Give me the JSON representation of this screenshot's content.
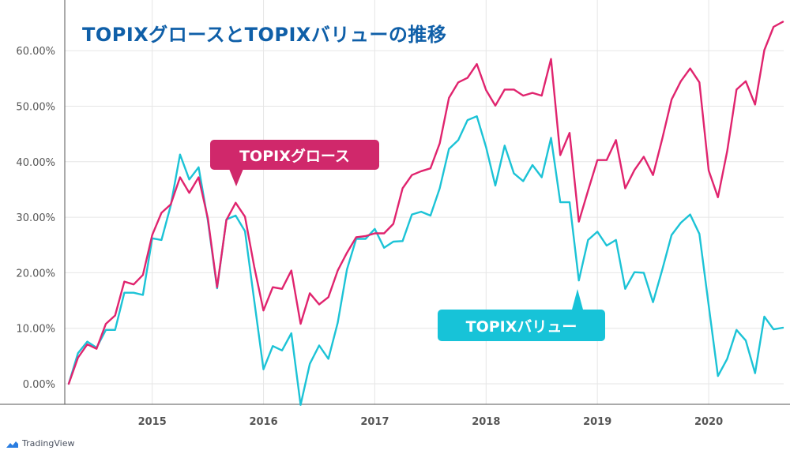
{
  "title": "TOPIXグロースとTOPIXバリューの推移",
  "callouts": {
    "growth": "TOPIXグロース",
    "value": "TOPIXバリュー"
  },
  "brand": {
    "name": "TradingView",
    "icon": "tradingview-cloud-icon"
  },
  "colors": {
    "growth": "#e0246e",
    "value": "#1cc3d6",
    "title": "#0f5fa8",
    "grid": "#e6e6e6"
  },
  "chart_data": {
    "type": "line",
    "ylabel": "",
    "xlabel": "",
    "y_ticks": [
      "0.00%",
      "10.00%",
      "20.00%",
      "30.00%",
      "40.00%",
      "50.00%",
      "60.00%"
    ],
    "x_ticks": [
      "2015",
      "2016",
      "2017",
      "2018",
      "2019",
      "2020"
    ],
    "ylim": [
      -4,
      68
    ],
    "grid": true,
    "series": [
      {
        "name": "TOPIXグロース",
        "color": "#e0246e",
        "points": [
          [
            "2014-04",
            0.0
          ],
          [
            "2014-05",
            4.7
          ],
          [
            "2014-06",
            7.1
          ],
          [
            "2014-07",
            6.3
          ],
          [
            "2014-08",
            10.8
          ],
          [
            "2014-09",
            12.3
          ],
          [
            "2014-10",
            18.4
          ],
          [
            "2014-11",
            17.9
          ],
          [
            "2014-12",
            19.6
          ],
          [
            "2015-01",
            26.8
          ],
          [
            "2015-02",
            30.8
          ],
          [
            "2015-03",
            32.3
          ],
          [
            "2015-04",
            37.2
          ],
          [
            "2015-05",
            34.4
          ],
          [
            "2015-06",
            37.2
          ],
          [
            "2015-07",
            29.8
          ],
          [
            "2015-08",
            17.4
          ],
          [
            "2015-09",
            29.5
          ],
          [
            "2015-10",
            32.6
          ],
          [
            "2015-11",
            30.1
          ],
          [
            "2015-12",
            21.1
          ],
          [
            "2016-01",
            13.2
          ],
          [
            "2016-02",
            17.4
          ],
          [
            "2016-03",
            17.1
          ],
          [
            "2016-04",
            20.4
          ],
          [
            "2016-05",
            10.8
          ],
          [
            "2016-06",
            16.3
          ],
          [
            "2016-07",
            14.3
          ],
          [
            "2016-08",
            15.6
          ],
          [
            "2016-09",
            20.4
          ],
          [
            "2016-10",
            23.6
          ],
          [
            "2016-11",
            26.4
          ],
          [
            "2016-12",
            26.6
          ],
          [
            "2017-01",
            27.1
          ],
          [
            "2017-02",
            27.1
          ],
          [
            "2017-03",
            28.8
          ],
          [
            "2017-04",
            35.2
          ],
          [
            "2017-05",
            37.6
          ],
          [
            "2017-06",
            38.3
          ],
          [
            "2017-07",
            38.8
          ],
          [
            "2017-08",
            43.3
          ],
          [
            "2017-09",
            51.5
          ],
          [
            "2017-10",
            54.3
          ],
          [
            "2017-11",
            55.1
          ],
          [
            "2017-12",
            57.6
          ],
          [
            "2018-01",
            52.9
          ],
          [
            "2018-02",
            50.1
          ],
          [
            "2018-03",
            53.0
          ],
          [
            "2018-04",
            53.0
          ],
          [
            "2018-05",
            51.9
          ],
          [
            "2018-06",
            52.4
          ],
          [
            "2018-07",
            51.9
          ],
          [
            "2018-08",
            58.5
          ],
          [
            "2018-09",
            41.2
          ],
          [
            "2018-10",
            45.2
          ],
          [
            "2018-11",
            29.2
          ],
          [
            "2018-12",
            34.8
          ],
          [
            "2019-01",
            40.3
          ],
          [
            "2019-02",
            40.3
          ],
          [
            "2019-03",
            43.9
          ],
          [
            "2019-04",
            35.2
          ],
          [
            "2019-05",
            38.5
          ],
          [
            "2019-06",
            40.9
          ],
          [
            "2019-07",
            37.6
          ],
          [
            "2019-08",
            44.2
          ],
          [
            "2019-09",
            51.2
          ],
          [
            "2019-10",
            54.5
          ],
          [
            "2019-11",
            56.8
          ],
          [
            "2019-12",
            54.3
          ],
          [
            "2020-01",
            38.4
          ],
          [
            "2020-02",
            33.6
          ],
          [
            "2020-03",
            41.9
          ],
          [
            "2020-04",
            53.0
          ],
          [
            "2020-05",
            54.5
          ],
          [
            "2020-06",
            50.3
          ],
          [
            "2020-07",
            60.1
          ],
          [
            "2020-08",
            64.3
          ],
          [
            "2020-09",
            65.2
          ]
        ]
      },
      {
        "name": "TOPIXバリュー",
        "color": "#1cc3d6",
        "points": [
          [
            "2014-04",
            0.0
          ],
          [
            "2014-05",
            5.5
          ],
          [
            "2014-06",
            7.6
          ],
          [
            "2014-07",
            6.5
          ],
          [
            "2014-08",
            9.7
          ],
          [
            "2014-09",
            9.7
          ],
          [
            "2014-10",
            16.4
          ],
          [
            "2014-11",
            16.4
          ],
          [
            "2014-12",
            16.0
          ],
          [
            "2015-01",
            26.2
          ],
          [
            "2015-02",
            25.9
          ],
          [
            "2015-03",
            32.1
          ],
          [
            "2015-04",
            41.3
          ],
          [
            "2015-05",
            36.8
          ],
          [
            "2015-06",
            39.0
          ],
          [
            "2015-07",
            29.4
          ],
          [
            "2015-08",
            17.2
          ],
          [
            "2015-09",
            29.6
          ],
          [
            "2015-10",
            30.3
          ],
          [
            "2015-11",
            27.5
          ],
          [
            "2015-12",
            15.0
          ],
          [
            "2016-01",
            2.6
          ],
          [
            "2016-02",
            6.8
          ],
          [
            "2016-03",
            6.0
          ],
          [
            "2016-04",
            9.1
          ],
          [
            "2016-05",
            -3.8
          ],
          [
            "2016-06",
            3.6
          ],
          [
            "2016-07",
            6.9
          ],
          [
            "2016-08",
            4.5
          ],
          [
            "2016-09",
            11.0
          ],
          [
            "2016-10",
            20.6
          ],
          [
            "2016-11",
            26.1
          ],
          [
            "2016-12",
            26.1
          ],
          [
            "2017-01",
            27.9
          ],
          [
            "2017-02",
            24.5
          ],
          [
            "2017-03",
            25.6
          ],
          [
            "2017-04",
            25.7
          ],
          [
            "2017-05",
            30.5
          ],
          [
            "2017-06",
            31.0
          ],
          [
            "2017-07",
            30.3
          ],
          [
            "2017-08",
            35.2
          ],
          [
            "2017-09",
            42.3
          ],
          [
            "2017-10",
            43.9
          ],
          [
            "2017-11",
            47.5
          ],
          [
            "2017-12",
            48.2
          ],
          [
            "2018-01",
            42.6
          ],
          [
            "2018-02",
            35.7
          ],
          [
            "2018-03",
            42.9
          ],
          [
            "2018-04",
            37.9
          ],
          [
            "2018-05",
            36.5
          ],
          [
            "2018-06",
            39.4
          ],
          [
            "2018-07",
            37.2
          ],
          [
            "2018-08",
            44.3
          ],
          [
            "2018-09",
            32.7
          ],
          [
            "2018-10",
            32.7
          ],
          [
            "2018-11",
            18.6
          ],
          [
            "2018-12",
            25.9
          ],
          [
            "2019-01",
            27.4
          ],
          [
            "2019-02",
            24.9
          ],
          [
            "2019-03",
            25.9
          ],
          [
            "2019-04",
            17.1
          ],
          [
            "2019-05",
            20.1
          ],
          [
            "2019-06",
            20.0
          ],
          [
            "2019-07",
            14.7
          ],
          [
            "2019-08",
            20.6
          ],
          [
            "2019-09",
            26.8
          ],
          [
            "2019-10",
            29.0
          ],
          [
            "2019-11",
            30.5
          ],
          [
            "2019-12",
            27.0
          ],
          [
            "2020-01",
            14.1
          ],
          [
            "2020-02",
            1.4
          ],
          [
            "2020-03",
            4.5
          ],
          [
            "2020-04",
            9.7
          ],
          [
            "2020-05",
            7.8
          ],
          [
            "2020-06",
            1.9
          ],
          [
            "2020-07",
            12.1
          ],
          [
            "2020-08",
            9.8
          ],
          [
            "2020-09",
            10.1
          ]
        ]
      }
    ]
  }
}
